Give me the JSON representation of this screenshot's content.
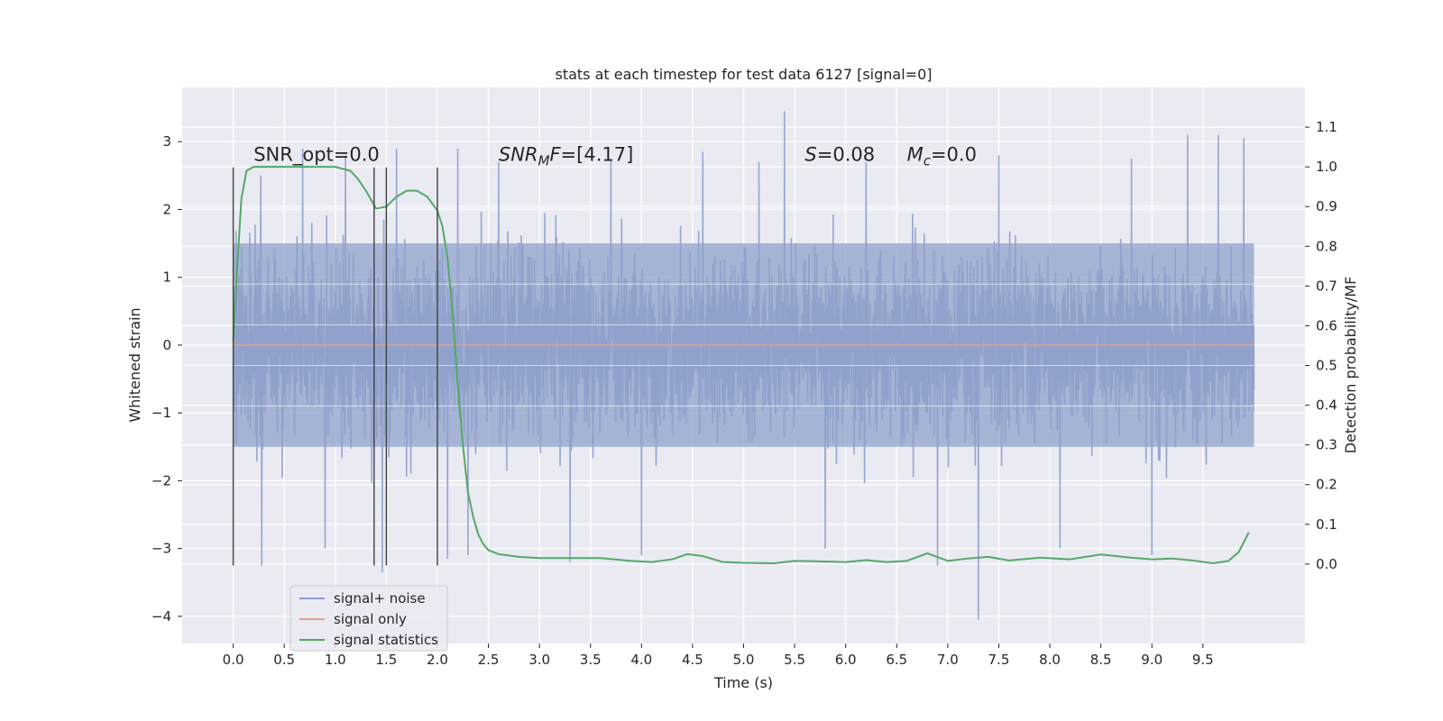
{
  "chart_data": {
    "type": "line",
    "title": "stats at each timestep for test data 6127 [signal=0]",
    "xlabel": "Time (s)",
    "ylabel": "Whitened strain",
    "y2label": "Detection probability/MF",
    "xlim": [
      -0.5,
      10.5
    ],
    "ylim": [
      -4.4,
      3.8
    ],
    "y2lim": [
      -0.2,
      1.2
    ],
    "x_ticks": [
      "0.0",
      "0.5",
      "1.0",
      "1.5",
      "2.0",
      "2.5",
      "3.0",
      "3.5",
      "4.0",
      "4.5",
      "5.0",
      "5.5",
      "6.0",
      "6.5",
      "7.0",
      "7.5",
      "8.0",
      "8.5",
      "9.0",
      "9.5"
    ],
    "y_ticks": [
      "3",
      "2",
      "1",
      "0",
      "−1",
      "−2",
      "−3",
      "−4"
    ],
    "y2_ticks": [
      "1.1",
      "1.0",
      "0.9",
      "0.8",
      "0.7",
      "0.6",
      "0.5",
      "0.4",
      "0.3",
      "0.2",
      "0.1",
      "0.0"
    ],
    "grid": true,
    "legend_position": "lower-left",
    "colors": {
      "noise": "#8da0cb",
      "signal_only": "#e5a28a",
      "statistics": "#55a868",
      "plot_bg": "#eaeaf2",
      "vlines": "#404040"
    },
    "annotations": [
      {
        "parts": [
          {
            "t": "SNR_opt=0.0",
            "italic": false
          }
        ],
        "x": 0.2,
        "y": 2.72
      },
      {
        "parts": [
          {
            "t": "SNR",
            "italic": true
          },
          {
            "t": "M",
            "italic": true,
            "sub": true
          },
          {
            "t": "F",
            "italic": true
          },
          {
            "t": "=[4.17]",
            "italic": false
          }
        ],
        "x": 2.6,
        "y": 2.72
      },
      {
        "parts": [
          {
            "t": "S",
            "italic": true
          },
          {
            "t": "=0.08",
            "italic": false
          }
        ],
        "x": 5.6,
        "y": 2.72
      },
      {
        "parts": [
          {
            "t": "M",
            "italic": true
          },
          {
            "t": "c",
            "italic": true,
            "sub": true
          },
          {
            "t": "=0.0",
            "italic": false
          }
        ],
        "x": 6.6,
        "y": 2.72
      }
    ],
    "vertical_lines": [
      {
        "x": 0.0,
        "ymin": -3.25,
        "ymax": 2.62
      },
      {
        "x": 1.38,
        "ymin": -3.25,
        "ymax": 2.62
      },
      {
        "x": 1.5,
        "ymin": -3.25,
        "ymax": 2.62
      },
      {
        "x": 2.0,
        "ymin": -3.25,
        "ymax": 2.62
      }
    ],
    "series": [
      {
        "name": "signal+ noise",
        "kind": "noise_band",
        "x_range": [
          0.0,
          10.0
        ],
        "core_amplitude": 1.5,
        "spikes": [
          {
            "x": 0.27,
            "y": 2.5
          },
          {
            "x": 0.28,
            "y": -3.25
          },
          {
            "x": 0.68,
            "y": 2.9
          },
          {
            "x": 0.9,
            "y": -3.0
          },
          {
            "x": 1.1,
            "y": 2.8
          },
          {
            "x": 1.46,
            "y": -3.35
          },
          {
            "x": 1.6,
            "y": 2.9
          },
          {
            "x": 2.1,
            "y": -3.15
          },
          {
            "x": 2.2,
            "y": 2.9
          },
          {
            "x": 2.3,
            "y": -3.1
          },
          {
            "x": 2.6,
            "y": 2.7
          },
          {
            "x": 3.3,
            "y": -3.2
          },
          {
            "x": 3.7,
            "y": 2.75
          },
          {
            "x": 4.0,
            "y": -3.1
          },
          {
            "x": 4.6,
            "y": 2.85
          },
          {
            "x": 5.15,
            "y": 2.7
          },
          {
            "x": 5.4,
            "y": 3.45
          },
          {
            "x": 5.8,
            "y": -3.0
          },
          {
            "x": 6.2,
            "y": 2.7
          },
          {
            "x": 6.9,
            "y": -3.25
          },
          {
            "x": 7.3,
            "y": -4.05
          },
          {
            "x": 7.5,
            "y": 2.8
          },
          {
            "x": 8.1,
            "y": -3.0
          },
          {
            "x": 8.8,
            "y": 2.75
          },
          {
            "x": 9.0,
            "y": -3.1
          },
          {
            "x": 9.35,
            "y": 3.1
          },
          {
            "x": 9.65,
            "y": 3.1
          },
          {
            "x": 9.9,
            "y": 3.05
          }
        ]
      },
      {
        "name": "signal only",
        "kind": "line",
        "axis": "left",
        "x": [
          0.0,
          10.0
        ],
        "y": [
          0.0,
          0.0
        ]
      },
      {
        "name": "signal statistics",
        "kind": "line",
        "axis": "right",
        "x": [
          0.0,
          0.04,
          0.08,
          0.13,
          0.2,
          0.3,
          0.5,
          0.8,
          1.0,
          1.15,
          1.22,
          1.3,
          1.4,
          1.5,
          1.6,
          1.7,
          1.8,
          1.9,
          2.0,
          2.05,
          2.1,
          2.15,
          2.2,
          2.25,
          2.3,
          2.35,
          2.4,
          2.45,
          2.5,
          2.6,
          2.8,
          3.0,
          3.3,
          3.6,
          3.9,
          4.1,
          4.3,
          4.45,
          4.6,
          4.8,
          5.0,
          5.3,
          5.5,
          5.7,
          6.0,
          6.2,
          6.4,
          6.6,
          6.8,
          7.0,
          7.2,
          7.4,
          7.6,
          7.9,
          8.2,
          8.5,
          8.8,
          9.0,
          9.2,
          9.4,
          9.6,
          9.75,
          9.85,
          9.95
        ],
        "y": [
          0.56,
          0.75,
          0.92,
          0.99,
          1.0,
          1.0,
          1.0,
          1.0,
          1.0,
          0.99,
          0.97,
          0.94,
          0.895,
          0.9,
          0.925,
          0.94,
          0.94,
          0.925,
          0.89,
          0.85,
          0.77,
          0.63,
          0.45,
          0.3,
          0.18,
          0.12,
          0.075,
          0.05,
          0.035,
          0.025,
          0.018,
          0.015,
          0.015,
          0.015,
          0.008,
          0.005,
          0.012,
          0.025,
          0.02,
          0.005,
          0.003,
          0.002,
          0.008,
          0.007,
          0.005,
          0.01,
          0.005,
          0.008,
          0.027,
          0.008,
          0.014,
          0.018,
          0.009,
          0.016,
          0.012,
          0.024,
          0.016,
          0.012,
          0.014,
          0.009,
          0.002,
          0.008,
          0.03,
          0.08
        ]
      }
    ]
  }
}
